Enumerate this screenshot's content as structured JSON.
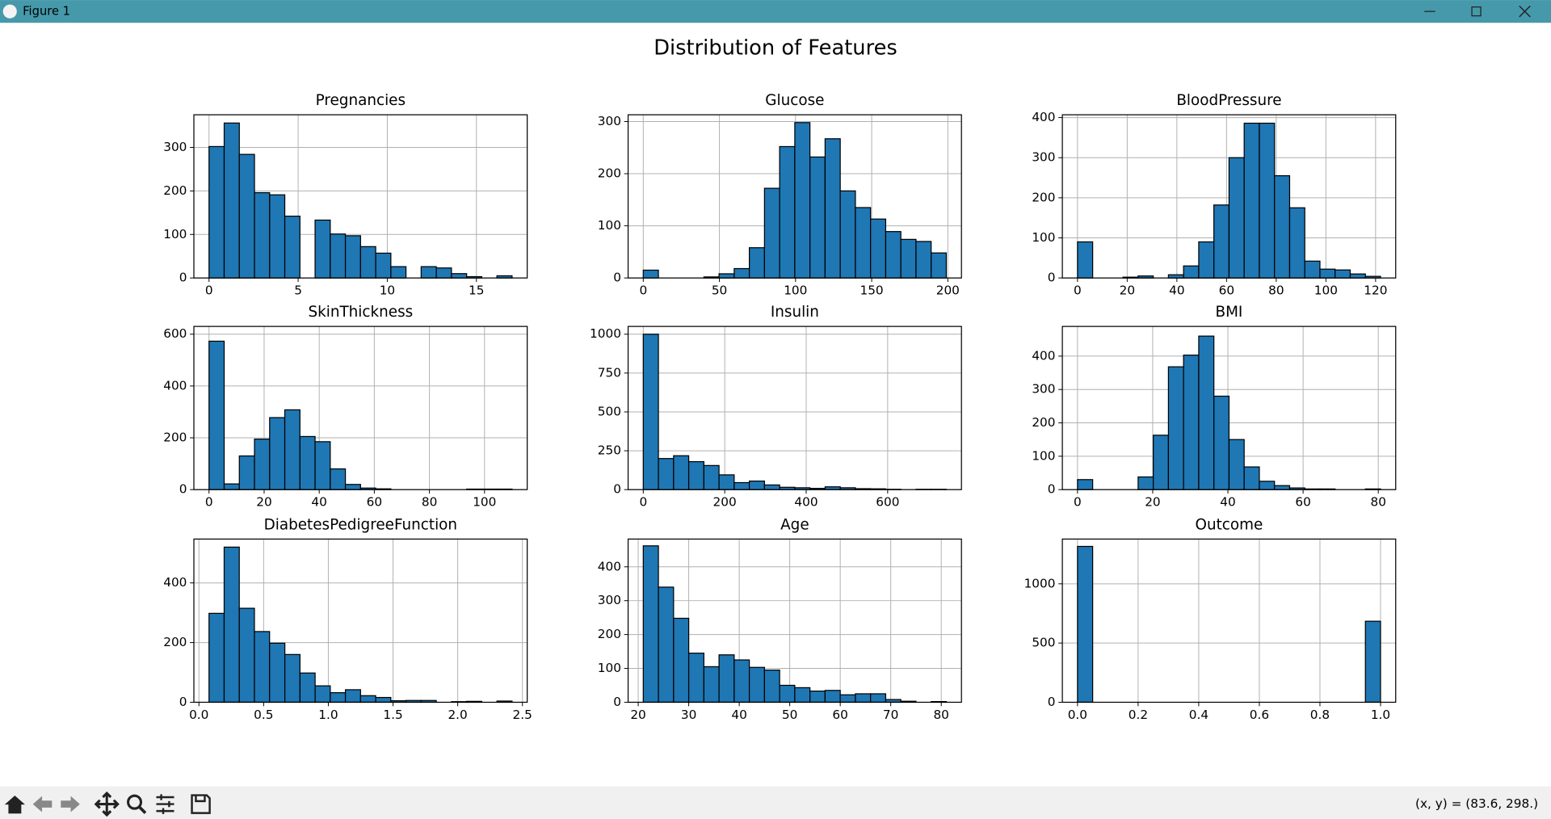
{
  "window": {
    "title": "Figure 1",
    "status": "(x, y) = (83.6, 298.)"
  },
  "figure": {
    "title": "Distribution of Features"
  },
  "chart_data": [
    {
      "type": "histogram",
      "title": "Pregnancies",
      "color": "#1f77b4",
      "grid": true,
      "bins": [
        0,
        0.85,
        1.7,
        2.55,
        3.4,
        4.25,
        5.1,
        5.95,
        6.8,
        7.65,
        8.5,
        9.35,
        10.2,
        11.05,
        11.9,
        12.75,
        13.6,
        14.45,
        15.3,
        16.15,
        17
      ],
      "values": [
        302,
        356,
        284,
        196,
        191,
        142,
        0,
        133,
        101,
        97,
        72,
        57,
        26,
        0,
        26,
        23,
        10,
        3,
        0,
        5
      ],
      "xlim": [
        -0.85,
        17.85
      ],
      "ylim": [
        0,
        375
      ],
      "xticks": [
        0,
        5,
        10,
        15
      ],
      "yticks": [
        0,
        100,
        200,
        300
      ]
    },
    {
      "type": "histogram",
      "title": "Glucose",
      "color": "#1f77b4",
      "grid": true,
      "bins": [
        0,
        9.95,
        19.9,
        29.85,
        39.8,
        49.75,
        59.7,
        69.65,
        79.6,
        89.55,
        99.5,
        109.45,
        119.4,
        129.35,
        139.3,
        149.25,
        159.2,
        169.15,
        179.1,
        189.05,
        199
      ],
      "values": [
        15,
        0,
        0,
        0,
        2,
        8,
        18,
        58,
        172,
        252,
        298,
        232,
        267,
        167,
        135,
        113,
        89,
        74,
        70,
        48
      ],
      "xlim": [
        -9.95,
        208.95
      ],
      "ylim": [
        0,
        313
      ],
      "xticks": [
        0,
        50,
        100,
        150,
        200
      ],
      "yticks": [
        0,
        100,
        200,
        300
      ]
    },
    {
      "type": "histogram",
      "title": "BloodPressure",
      "color": "#1f77b4",
      "grid": true,
      "bins": [
        0,
        6.1,
        12.2,
        18.3,
        24.4,
        30.5,
        36.6,
        42.7,
        48.8,
        54.9,
        61,
        67.1,
        73.2,
        79.3,
        85.4,
        91.5,
        97.6,
        103.7,
        109.8,
        115.9,
        122
      ],
      "values": [
        90,
        0,
        0,
        2,
        5,
        0,
        8,
        30,
        90,
        182,
        300,
        386,
        386,
        255,
        175,
        42,
        22,
        20,
        10,
        4
      ],
      "xlim": [
        -6.1,
        128.1
      ],
      "ylim": [
        0,
        407
      ],
      "xticks": [
        0,
        20,
        40,
        60,
        80,
        100,
        120
      ],
      "yticks": [
        0,
        100,
        200,
        300,
        400
      ]
    },
    {
      "type": "histogram",
      "title": "SkinThickness",
      "color": "#1f77b4",
      "grid": true,
      "bins": [
        0,
        5.5,
        11,
        16.5,
        22,
        27.5,
        33,
        38.5,
        44,
        49.5,
        55,
        60.5,
        66,
        71.5,
        77,
        82.5,
        88,
        93.5,
        99,
        104.5,
        110
      ],
      "values": [
        573,
        22,
        130,
        195,
        278,
        308,
        205,
        185,
        80,
        20,
        6,
        3,
        0,
        0,
        0,
        0,
        0,
        2,
        2,
        2
      ],
      "xlim": [
        -5.5,
        115.5
      ],
      "ylim": [
        0,
        630
      ],
      "xticks": [
        0,
        20,
        40,
        60,
        80,
        100
      ],
      "yticks": [
        0,
        200,
        400,
        600
      ]
    },
    {
      "type": "histogram",
      "title": "Insulin",
      "color": "#1f77b4",
      "grid": true,
      "bins": [
        0,
        37.2,
        74.4,
        111.6,
        148.8,
        186,
        223.2,
        260.4,
        297.6,
        334.8,
        372,
        409.2,
        446.4,
        483.6,
        520.8,
        558,
        595.2,
        632.4,
        669.6,
        706.8,
        744
      ],
      "values": [
        1000,
        200,
        218,
        180,
        155,
        95,
        45,
        55,
        30,
        15,
        12,
        8,
        18,
        12,
        6,
        5,
        2,
        0,
        2,
        2
      ],
      "xlim": [
        -37.2,
        781.2
      ],
      "ylim": [
        0,
        1050
      ],
      "xticks": [
        0,
        200,
        400,
        600
      ],
      "yticks": [
        0,
        250,
        500,
        750,
        1000
      ]
    },
    {
      "type": "histogram",
      "title": "BMI",
      "color": "#1f77b4",
      "grid": true,
      "bins": [
        0,
        4.03,
        8.06,
        12.09,
        16.12,
        20.15,
        24.18,
        28.21,
        32.24,
        36.27,
        40.3,
        44.33,
        48.36,
        52.39,
        56.42,
        60.45,
        64.48,
        68.51,
        72.54,
        76.57,
        80.6
      ],
      "values": [
        30,
        0,
        0,
        0,
        38,
        163,
        368,
        403,
        460,
        280,
        150,
        68,
        25,
        12,
        5,
        2,
        2,
        0,
        0,
        2
      ],
      "xlim": [
        -4.03,
        84.63
      ],
      "ylim": [
        0,
        489
      ],
      "xticks": [
        0,
        20,
        40,
        60,
        80
      ],
      "yticks": [
        0,
        100,
        200,
        300,
        400
      ]
    },
    {
      "type": "histogram",
      "title": "DiabetesPedigreeFunction",
      "color": "#1f77b4",
      "grid": true,
      "bins": [
        0.078,
        0.195,
        0.312,
        0.429,
        0.546,
        0.664,
        0.781,
        0.898,
        1.015,
        1.132,
        1.249,
        1.366,
        1.483,
        1.6,
        1.717,
        1.834,
        1.951,
        2.068,
        2.186,
        2.303,
        2.42
      ],
      "values": [
        298,
        520,
        315,
        237,
        198,
        160,
        98,
        55,
        32,
        42,
        22,
        16,
        5,
        6,
        6,
        0,
        2,
        3,
        0,
        4
      ],
      "xlim": [
        -0.039,
        2.537
      ],
      "ylim": [
        0,
        547
      ],
      "xticks": [
        {
          "value": 0,
          "label": "0.0"
        },
        0.5,
        {
          "value": 1,
          "label": "1.0"
        },
        1.5,
        {
          "value": 2,
          "label": "2.0"
        },
        2.5
      ],
      "yticks": [
        0,
        200,
        400
      ]
    },
    {
      "type": "histogram",
      "title": "Age",
      "color": "#1f77b4",
      "grid": true,
      "bins": [
        21,
        24,
        27,
        30,
        33,
        36,
        39,
        42,
        45,
        48,
        51,
        54,
        57,
        60,
        63,
        66,
        69,
        72,
        75,
        78,
        81
      ],
      "values": [
        462,
        340,
        248,
        145,
        105,
        140,
        125,
        103,
        95,
        50,
        43,
        33,
        35,
        22,
        25,
        25,
        8,
        3,
        0,
        2
      ],
      "xlim": [
        18,
        84
      ],
      "ylim": [
        0,
        482
      ],
      "xticks": [
        20,
        30,
        40,
        50,
        60,
        70,
        80
      ],
      "yticks": [
        0,
        100,
        200,
        300,
        400
      ]
    },
    {
      "type": "histogram",
      "title": "Outcome",
      "color": "#1f77b4",
      "grid": true,
      "bins": [
        0,
        0.05,
        0.1,
        0.15,
        0.2,
        0.25,
        0.3,
        0.35,
        0.4,
        0.45,
        0.5,
        0.55,
        0.6,
        0.65,
        0.7,
        0.75,
        0.8,
        0.85,
        0.9,
        0.95,
        1
      ],
      "values": [
        1316,
        0,
        0,
        0,
        0,
        0,
        0,
        0,
        0,
        0,
        0,
        0,
        0,
        0,
        0,
        0,
        0,
        0,
        0,
        684
      ],
      "xlim": [
        -0.05,
        1.05
      ],
      "ylim": [
        0,
        1378
      ],
      "xticks": [
        {
          "value": 0,
          "label": "0.0"
        },
        0.2,
        0.4,
        0.6,
        0.8,
        {
          "value": 1,
          "label": "1.0"
        }
      ],
      "yticks": [
        0,
        500,
        1000
      ]
    }
  ]
}
